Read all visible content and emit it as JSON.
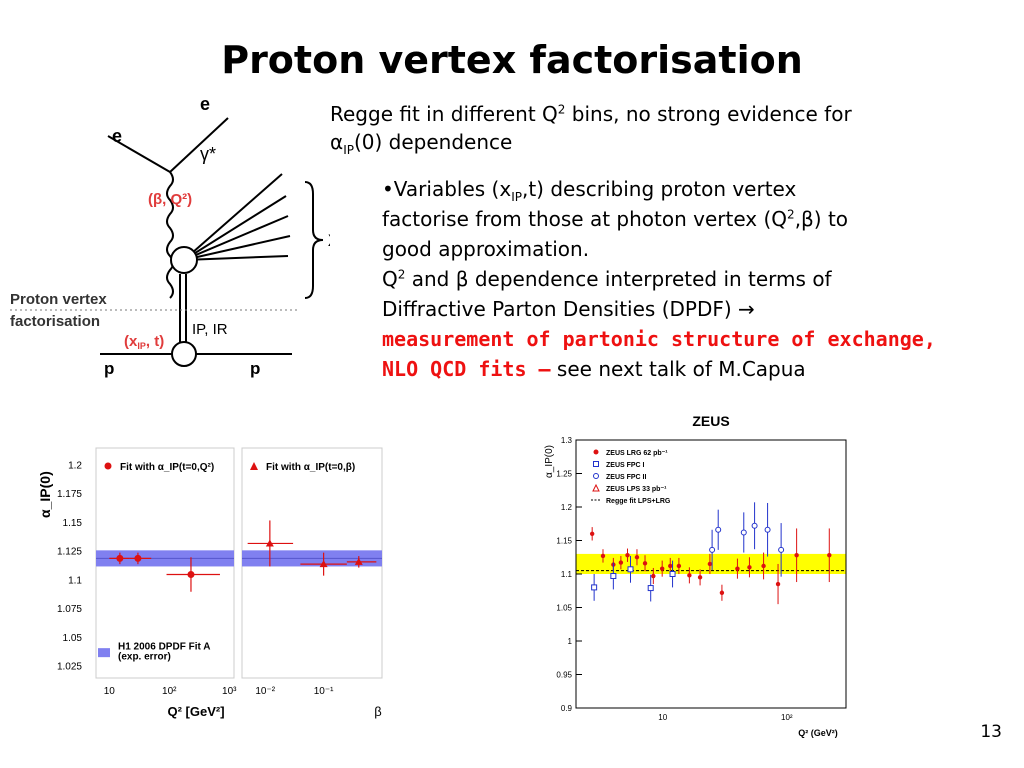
{
  "slide": {
    "title": "Proton vertex factorisation",
    "page_number": "13"
  },
  "text": {
    "intro_a": "Regge fit in different Q",
    "intro_sup": "2",
    "intro_b": " bins, no strong evidence for",
    "intro_c": "α",
    "intro_sub": "IP",
    "intro_d": "(0) dependence",
    "b1_a": "•Variables (x",
    "b1_sub": "IP",
    "b1_b": ",t) describing proton vertex",
    "b1_c": "factorise from those at photon vertex (Q",
    "b1_sup": "2",
    "b1_d": ",β) to",
    "b1_e": "good approximation.",
    "b2_a": "Q",
    "b2_sup": "2",
    "b2_b": " and β dependence interpreted in terms of",
    "b2_c": "Diffractive Parton Densities (DPDF) →",
    "b2_red1": "measurement of partonic structure of exchange,",
    "b2_red2": "NLO QCD fits –",
    "b2_tail": " see next talk of M.Capua"
  },
  "diagram": {
    "e_in": "e",
    "e_out": "e",
    "gamma": "γ*",
    "photon_vars": "(β, Q²)",
    "x_label": "X",
    "factorisation_1": "Proton vertex",
    "factorisation_2": "factorisation",
    "proton_vars": "(x",
    "proton_vars_sub": "IP",
    "proton_vars_end": ", t)",
    "exchange": "IP, IR",
    "p_in": "p",
    "p_out": "p"
  },
  "chart_data": [
    {
      "type": "scatter",
      "title": "",
      "ylabel": "α_IP(0)",
      "ylim": [
        1.015,
        1.215
      ],
      "yticks": [
        "1.2",
        "1.175",
        "1.15",
        "1.125",
        "1.1",
        "1.075",
        "1.05",
        "1.025"
      ],
      "panels": [
        {
          "legend": "Fit with α_IP(t=0,Q²)",
          "xlabel": "Q² [GeV²]",
          "xticks": [
            "10",
            "10²",
            "10³"
          ],
          "xlog": true,
          "xlim": [
            6,
            1200
          ],
          "band": [
            1.112,
            1.126
          ],
          "points": [
            {
              "x": 15,
              "y": 1.119,
              "xlo": 10,
              "xhi": 22,
              "yerr": 0.005
            },
            {
              "x": 30,
              "y": 1.119,
              "xlo": 22,
              "xhi": 50,
              "yerr": 0.005
            },
            {
              "x": 230,
              "y": 1.105,
              "xlo": 90,
              "xhi": 700,
              "yerr": 0.015
            }
          ],
          "notes": [
            "H1 2006 DPDF Fit A",
            "(exp. error)"
          ]
        },
        {
          "legend": "Fit with α_IP(t=0,β)",
          "xlabel": "β",
          "xticks": [
            "10⁻²",
            "10⁻¹"
          ],
          "xlog": true,
          "xlim": [
            0.004,
            1
          ],
          "band": [
            1.112,
            1.126
          ],
          "points": [
            {
              "x": 0.012,
              "y": 1.132,
              "xlo": 0.005,
              "xhi": 0.03,
              "yerr": 0.02
            },
            {
              "x": 0.1,
              "y": 1.114,
              "xlo": 0.04,
              "xhi": 0.25,
              "yerr": 0.01
            },
            {
              "x": 0.4,
              "y": 1.116,
              "xlo": 0.25,
              "xhi": 0.8,
              "yerr": 0.005
            }
          ]
        }
      ]
    },
    {
      "type": "scatter",
      "title": "ZEUS",
      "xlabel": "Q² (GeV²)",
      "ylabel": "α_IP(0)",
      "xlog": true,
      "xlim": [
        2,
        300
      ],
      "ylim": [
        0.9,
        1.3
      ],
      "yticks": [
        "1.3",
        "1.25",
        "1.2",
        "1.15",
        "1.1",
        "1.05",
        "1",
        "0.95",
        "0.9"
      ],
      "xticks": [
        "10",
        "10²"
      ],
      "band": [
        1.1,
        1.13
      ],
      "regge_line": 1.105,
      "legend": [
        "ZEUS LRG 62 pb⁻¹",
        "ZEUS FPC I",
        "ZEUS FPC II",
        "ZEUS LPS 33 pb⁻¹",
        "Regge fit LPS+LRG"
      ],
      "series": [
        {
          "name": "ZEUS LRG 62 pb⁻¹",
          "marker": "dot",
          "points": [
            [
              2.7,
              1.16,
              0.01
            ],
            [
              3.3,
              1.127,
              0.01
            ],
            [
              4.0,
              1.114,
              0.01
            ],
            [
              4.6,
              1.117,
              0.01
            ],
            [
              5.2,
              1.128,
              0.01
            ],
            [
              6.2,
              1.125,
              0.012
            ],
            [
              7.2,
              1.116,
              0.012
            ],
            [
              8.4,
              1.097,
              0.012
            ],
            [
              9.9,
              1.108,
              0.012
            ],
            [
              11.5,
              1.112,
              0.012
            ],
            [
              13.5,
              1.112,
              0.012
            ],
            [
              16.4,
              1.098,
              0.012
            ],
            [
              20,
              1.095,
              0.012
            ],
            [
              24,
              1.115,
              0.015
            ],
            [
              30,
              1.072,
              0.012
            ],
            [
              40,
              1.108,
              0.015
            ],
            [
              50,
              1.11,
              0.015
            ],
            [
              65,
              1.112,
              0.02
            ],
            [
              85,
              1.085,
              0.03
            ],
            [
              120,
              1.128,
              0.04
            ],
            [
              220,
              1.128,
              0.04
            ]
          ]
        },
        {
          "name": "ZEUS FPC I",
          "marker": "square",
          "points": [
            [
              2.8,
              1.08,
              0.02
            ],
            [
              4.0,
              1.097,
              0.02
            ],
            [
              5.5,
              1.107,
              0.02
            ],
            [
              8.0,
              1.079,
              0.02
            ],
            [
              12,
              1.1,
              0.02
            ]
          ]
        },
        {
          "name": "ZEUS FPC II",
          "marker": "circle",
          "points": [
            [
              25,
              1.136,
              0.03
            ],
            [
              28,
              1.166,
              0.03
            ],
            [
              45,
              1.162,
              0.03
            ],
            [
              55,
              1.172,
              0.035
            ],
            [
              70,
              1.166,
              0.04
            ],
            [
              90,
              1.136,
              0.04
            ]
          ]
        }
      ]
    }
  ],
  "colors": {
    "red": "#ee1111",
    "blue_band": "#8080f0",
    "yellow_band": "#ffff00",
    "data_red": "#dd1111",
    "data_blue": "#2233cc"
  }
}
